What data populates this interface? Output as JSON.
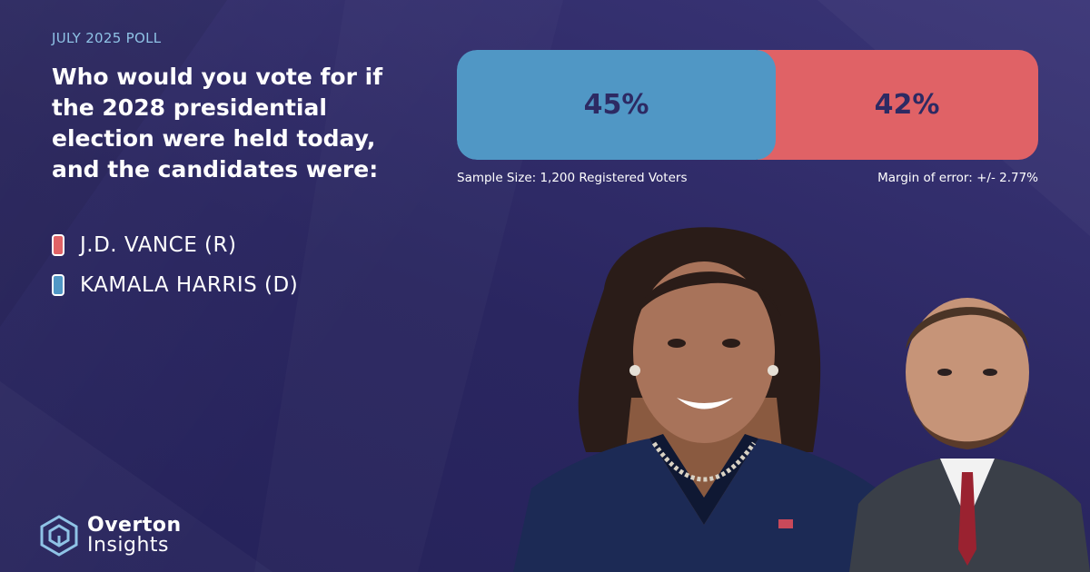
{
  "header": {
    "eyebrow": "JULY 2025 POLL",
    "question": "Who would you vote for if the 2028 presidential election were held today, and the candidates were:"
  },
  "legend": [
    {
      "label": "J.D. VANCE (R)",
      "color": "#e06266"
    },
    {
      "label": "KAMALA HARRIS (D)",
      "color": "#5097c5"
    }
  ],
  "chart_data": {
    "type": "bar",
    "orientation": "horizontal-stacked",
    "series": [
      {
        "name": "KAMALA HARRIS (D)",
        "value": 45,
        "label": "45%",
        "color": "#5097c5"
      },
      {
        "name": "J.D. VANCE (R)",
        "value": 42,
        "label": "42%",
        "color": "#e06266"
      }
    ],
    "sample_size": "Sample Size: 1,200 Registered Voters",
    "margin_of_error": "Margin of error: +/- 2.77%"
  },
  "photos": {
    "harris": "kamala-harris-portrait",
    "vance": "jd-vance-portrait"
  },
  "brand": {
    "line1": "Overton",
    "line2": "Insights",
    "icon": "hexagon-cube-icon"
  }
}
